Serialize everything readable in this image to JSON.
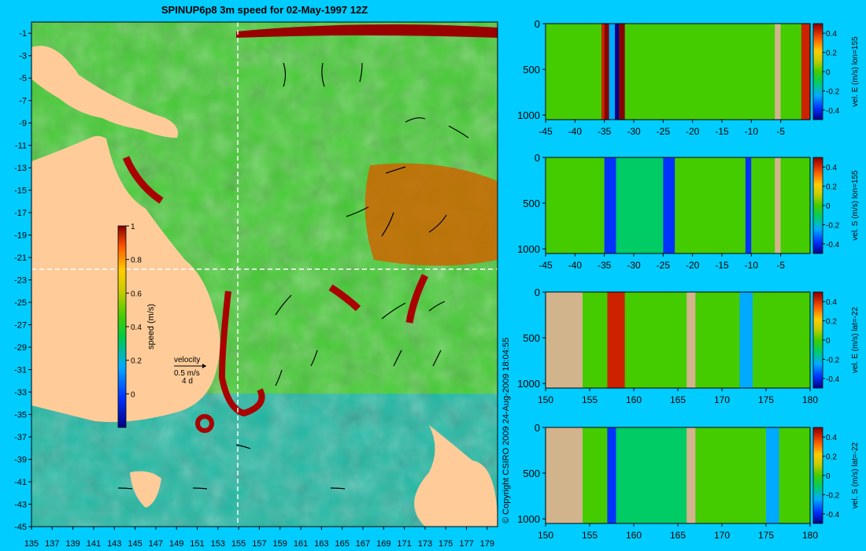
{
  "colors": {
    "background": "#00ccff",
    "land": "#ffcc99",
    "masked": "#d2b48c",
    "jet": [
      "#000088",
      "#0033ff",
      "#00aaff",
      "#00cc66",
      "#44cc00",
      "#cccc00",
      "#ffcc00",
      "#ff6600",
      "#cc2200",
      "#880000"
    ]
  },
  "chart_data": [
    {
      "id": "map",
      "type": "heatmap",
      "title": "SPINUP6p8 3m speed for 02-May-1997 12Z",
      "xlabel": "",
      "ylabel": "",
      "xlim": [
        135,
        180
      ],
      "ylim": [
        -45,
        0
      ],
      "xticks": [
        135,
        137,
        139,
        141,
        143,
        145,
        147,
        149,
        151,
        153,
        155,
        157,
        159,
        161,
        163,
        165,
        167,
        169,
        171,
        173,
        175,
        177,
        179
      ],
      "yticks": [
        -1,
        -3,
        -5,
        -7,
        -9,
        -11,
        -13,
        -15,
        -17,
        -19,
        -21,
        -23,
        -25,
        -27,
        -29,
        -31,
        -33,
        -35,
        -37,
        -39,
        -41,
        -43,
        -45
      ],
      "section_lon": 155,
      "section_lat": -22,
      "colorbar": {
        "label": "speed (m/s)",
        "ticks": [
          0,
          0.2,
          0.4,
          0.6,
          0.8,
          1
        ],
        "range": [
          -0.2,
          1
        ]
      },
      "velocity_legend": {
        "title": "velocity",
        "line1": "0.5 m/s",
        "line2": "4 d"
      }
    },
    {
      "id": "sec1",
      "type": "heatmap",
      "xticks": [
        -45,
        -40,
        -35,
        -30,
        -25,
        -20,
        -15,
        -10,
        -5
      ],
      "xlim": [
        -45,
        0
      ],
      "yticks": [
        0,
        500,
        1000
      ],
      "ylim": [
        0,
        1050
      ],
      "colorbar": {
        "label": "vel. E (m/s) lon=155",
        "ticks": [
          0.4,
          0.2,
          0,
          -0.2,
          -0.4
        ]
      }
    },
    {
      "id": "sec2",
      "type": "heatmap",
      "xticks": [
        -45,
        -40,
        -35,
        -30,
        -25,
        -20,
        -15,
        -10,
        -5
      ],
      "xlim": [
        -45,
        0
      ],
      "yticks": [
        0,
        500,
        1000
      ],
      "ylim": [
        0,
        1050
      ],
      "colorbar": {
        "label": "vel. S (m/s) lon=155",
        "ticks": [
          0.4,
          0.2,
          0,
          -0.2,
          -0.4
        ]
      }
    },
    {
      "id": "sec3",
      "type": "heatmap",
      "xticks": [
        150,
        155,
        160,
        165,
        170,
        175,
        180
      ],
      "xlim": [
        150,
        180
      ],
      "yticks": [
        0,
        500,
        1000
      ],
      "ylim": [
        0,
        1050
      ],
      "colorbar": {
        "label": "vel. E (m/s) lat=-22",
        "ticks": [
          0.4,
          0.2,
          0,
          -0.2,
          -0.4
        ]
      }
    },
    {
      "id": "sec4",
      "type": "heatmap",
      "xticks": [
        150,
        155,
        160,
        165,
        170,
        175,
        180
      ],
      "xlim": [
        150,
        180
      ],
      "yticks": [
        0,
        500,
        1000
      ],
      "ylim": [
        0,
        1050
      ],
      "colorbar": {
        "label": "vel. S (m/s) lat=-22",
        "ticks": [
          0.4,
          0.2,
          0,
          -0.2,
          -0.4
        ]
      }
    }
  ],
  "copyright": "© Copyright CSIRO 2009   24-Aug-2009 18:04:55"
}
